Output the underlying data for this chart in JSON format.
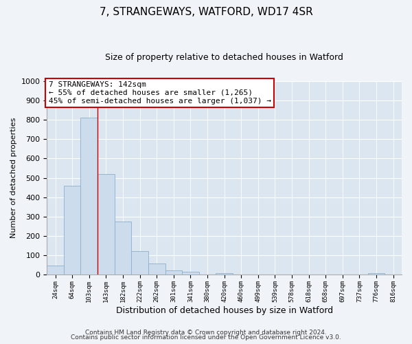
{
  "title": "7, STRANGEWAYS, WATFORD, WD17 4SR",
  "subtitle": "Size of property relative to detached houses in Watford",
  "xlabel": "Distribution of detached houses by size in Watford",
  "ylabel": "Number of detached properties",
  "bin_labels": [
    "24sqm",
    "64sqm",
    "103sqm",
    "143sqm",
    "182sqm",
    "222sqm",
    "262sqm",
    "301sqm",
    "341sqm",
    "380sqm",
    "420sqm",
    "460sqm",
    "499sqm",
    "539sqm",
    "578sqm",
    "618sqm",
    "658sqm",
    "697sqm",
    "737sqm",
    "776sqm",
    "816sqm"
  ],
  "bar_heights": [
    46,
    460,
    810,
    520,
    275,
    122,
    57,
    22,
    14,
    0,
    8,
    0,
    0,
    0,
    0,
    0,
    0,
    0,
    0,
    8,
    0
  ],
  "bar_color": "#cddcec",
  "bar_edge_color": "#8ab0cc",
  "ylim": [
    0,
    1000
  ],
  "yticks": [
    0,
    100,
    200,
    300,
    400,
    500,
    600,
    700,
    800,
    900,
    1000
  ],
  "vline_x": 3,
  "vline_color": "#cc0000",
  "annotation_title": "7 STRANGEWAYS: 142sqm",
  "annotation_line1": "← 55% of detached houses are smaller (1,265)",
  "annotation_line2": "45% of semi-detached houses are larger (1,037) →",
  "annotation_box_color": "#cc0000",
  "footer1": "Contains HM Land Registry data © Crown copyright and database right 2024.",
  "footer2": "Contains public sector information licensed under the Open Government Licence v3.0.",
  "fig_bg_color": "#f0f4f8",
  "plot_bg_color": "#dce6f0"
}
